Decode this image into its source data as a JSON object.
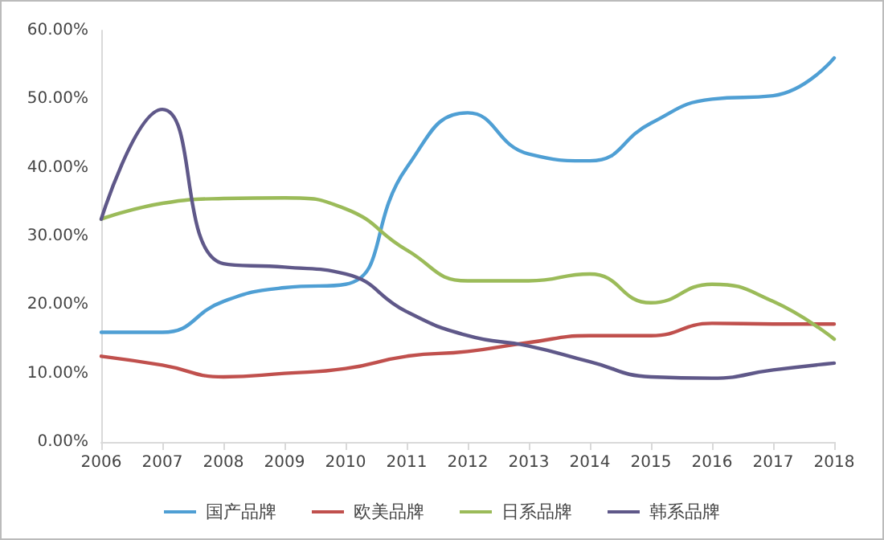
{
  "chart_data": {
    "type": "line",
    "categories": [
      "2006",
      "2007",
      "2008",
      "2009",
      "2010",
      "2011",
      "2012",
      "2013",
      "2014",
      "2015",
      "2016",
      "2017",
      "2018"
    ],
    "series": [
      {
        "name": "国产品牌",
        "color": "#4f9fd4",
        "values": [
          16,
          16,
          20.5,
          22.5,
          23,
          40,
          48,
          42,
          41,
          46.5,
          50,
          50.5,
          56
        ]
      },
      {
        "name": "欧美品牌",
        "color": "#c0504d",
        "values": [
          12.5,
          11.2,
          9.5,
          10,
          10.7,
          12.5,
          13.2,
          14.5,
          15.5,
          15.5,
          17.3,
          17.2,
          17.2
        ]
      },
      {
        "name": "日系品牌",
        "color": "#9bbb59",
        "values": [
          32.5,
          34.8,
          35.5,
          35.6,
          34,
          28,
          23.5,
          23.5,
          24.5,
          20.3,
          23,
          20.5,
          15
        ]
      },
      {
        "name": "韩系品牌",
        "color": "#5f5889",
        "values": [
          32.5,
          48.5,
          26,
          25.5,
          24.5,
          19,
          15.5,
          14,
          11.7,
          9.5,
          9.3,
          10.5,
          11.5
        ]
      }
    ],
    "ylim": [
      0,
      60
    ],
    "yticks": [
      {
        "value": 0,
        "label": "0.00%"
      },
      {
        "value": 10,
        "label": "10.00%"
      },
      {
        "value": 20,
        "label": "20.00%"
      },
      {
        "value": 30,
        "label": "30.00%"
      },
      {
        "value": 40,
        "label": "40.00%"
      },
      {
        "value": 50,
        "label": "50.00%"
      },
      {
        "value": 60,
        "label": "60.00%"
      }
    ],
    "grid": false,
    "legend": "bottom",
    "marker": "none",
    "line_style": "solid"
  }
}
